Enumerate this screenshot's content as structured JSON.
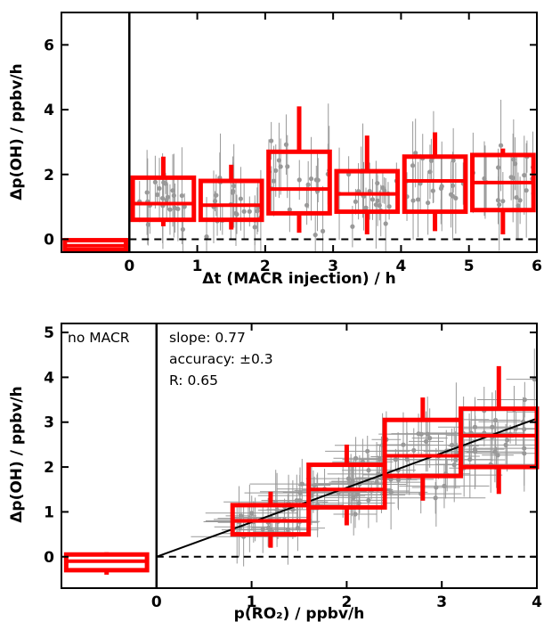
{
  "colors": {
    "box": "#ff0000",
    "points": "#999999",
    "fit": "#000000",
    "zero_line": "#000000"
  },
  "chart_data": [
    {
      "type": "box",
      "xlabel": "Δt (MACR injection) / h",
      "ylabel": "Δp(OH)   / ppbv/h",
      "xlim": [
        -1.0,
        6.0
      ],
      "ylim": [
        -0.4,
        7.0
      ],
      "xticks": [
        0,
        1,
        2,
        3,
        4,
        5,
        6
      ],
      "yticks": [
        0,
        2,
        4,
        6
      ],
      "vline_x": 0,
      "hline_y": 0,
      "boxes": [
        {
          "x0": -0.95,
          "x1": -0.05,
          "q1": -0.33,
          "median": -0.2,
          "q3": -0.03,
          "whisker_low": -0.33,
          "whisker_high": -0.03
        },
        {
          "x0": 0.05,
          "x1": 0.95,
          "q1": 0.6,
          "median": 1.1,
          "q3": 1.9,
          "whisker_low": 0.4,
          "whisker_high": 2.55
        },
        {
          "x0": 1.05,
          "x1": 1.95,
          "q1": 0.6,
          "median": 1.05,
          "q3": 1.8,
          "whisker_low": 0.3,
          "whisker_high": 2.3
        },
        {
          "x0": 2.05,
          "x1": 2.95,
          "q1": 0.8,
          "median": 1.55,
          "q3": 2.7,
          "whisker_low": 0.2,
          "whisker_high": 4.1
        },
        {
          "x0": 3.05,
          "x1": 3.95,
          "q1": 0.85,
          "median": 1.4,
          "q3": 2.1,
          "whisker_low": 0.15,
          "whisker_high": 3.2
        },
        {
          "x0": 4.05,
          "x1": 4.95,
          "q1": 0.85,
          "median": 1.8,
          "q3": 2.55,
          "whisker_low": 0.25,
          "whisker_high": 3.3
        },
        {
          "x0": 5.05,
          "x1": 5.95,
          "q1": 0.9,
          "median": 1.75,
          "q3": 2.6,
          "whisker_low": 0.15,
          "whisker_high": 2.8
        }
      ]
    },
    {
      "type": "box",
      "xlabel": "p(RO₂)  / ppbv/h",
      "ylabel": "Δp(OH)   / ppbv/h",
      "xlim": [
        -1.0,
        4.0
      ],
      "ylim": [
        -0.7,
        5.2
      ],
      "xticks": [
        0,
        1,
        2,
        3,
        4
      ],
      "yticks": [
        0,
        1,
        2,
        3,
        4,
        5
      ],
      "vline_x": 0,
      "hline_y": 0,
      "annotations": {
        "left_panel": "no MACR",
        "slope": "slope: 0.77",
        "accuracy": "accuracy: ±0.3",
        "r": "R: 0.65"
      },
      "fit_line": {
        "slope": 0.77,
        "intercept": 0.0,
        "x_range": [
          0.0,
          4.0
        ]
      },
      "boxes": [
        {
          "x0": -0.95,
          "x1": -0.1,
          "q1": -0.3,
          "median": -0.1,
          "q3": 0.05,
          "whisker_low": -0.4,
          "whisker_high": 0.1
        },
        {
          "x0": 0.8,
          "x1": 1.6,
          "q1": 0.5,
          "median": 0.8,
          "q3": 1.15,
          "whisker_low": 0.2,
          "whisker_high": 1.45
        },
        {
          "x0": 1.6,
          "x1": 2.4,
          "q1": 1.1,
          "median": 1.5,
          "q3": 2.05,
          "whisker_low": 0.7,
          "whisker_high": 2.5
        },
        {
          "x0": 2.4,
          "x1": 3.2,
          "q1": 1.8,
          "median": 2.25,
          "q3": 3.05,
          "whisker_low": 1.25,
          "whisker_high": 3.55
        },
        {
          "x0": 3.2,
          "x1": 4.0,
          "q1": 2.0,
          "median": 2.7,
          "q3": 3.3,
          "whisker_low": 1.4,
          "whisker_high": 4.25
        }
      ]
    }
  ]
}
